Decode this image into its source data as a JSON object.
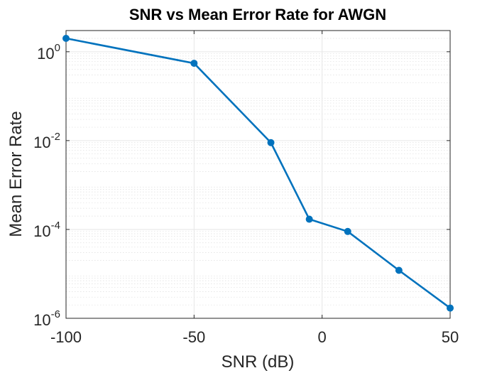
{
  "chart_data": {
    "type": "line",
    "title": "SNR vs Mean Error Rate for AWGN",
    "xlabel": "SNR (dB)",
    "ylabel": "Mean Error Rate",
    "xlim": [
      -100,
      50
    ],
    "ylim": [
      1e-06,
      3
    ],
    "y_scale": "log",
    "grid": true,
    "minor_grid": true,
    "x_ticks": [
      -100,
      -50,
      0,
      50
    ],
    "x_tick_labels": [
      "-100",
      "-50",
      "0",
      "50"
    ],
    "y_ticks": [
      {
        "value": 1,
        "base": "10",
        "exp": "0"
      },
      {
        "value": 0.01,
        "base": "10",
        "exp": "-2"
      },
      {
        "value": 0.0001,
        "base": "10",
        "exp": "-4"
      },
      {
        "value": 1e-06,
        "base": "10",
        "exp": "-6"
      }
    ],
    "series": [
      {
        "color": "#0072BD",
        "marker": "circle",
        "x": [
          -100,
          -50,
          -20,
          -5,
          10,
          30,
          50
        ],
        "y": [
          2.0,
          0.55,
          0.009,
          0.00017,
          9e-05,
          1.2e-05,
          1.7e-06
        ]
      }
    ]
  }
}
